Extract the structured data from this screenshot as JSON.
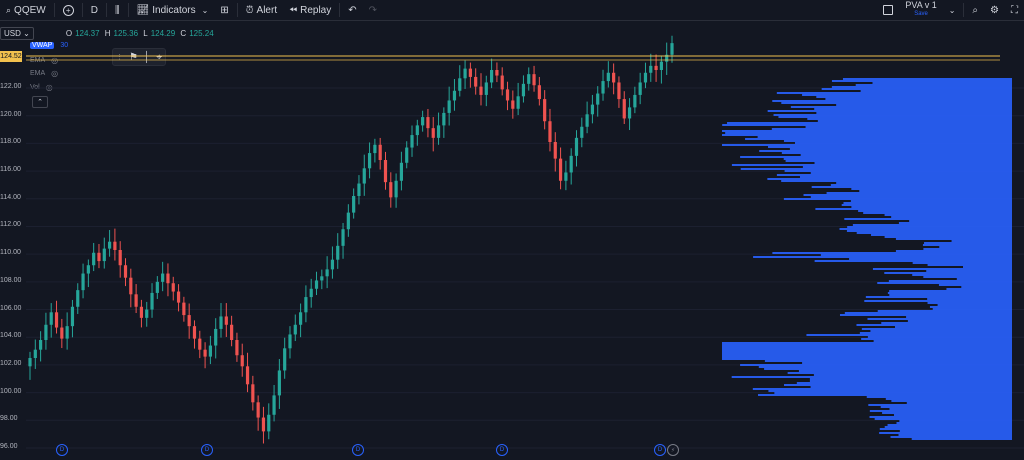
{
  "toolbar": {
    "symbol": "QQEW",
    "interval": "D",
    "indicators_label": "Indicators",
    "alert_label": "Alert",
    "replay_label": "Replay",
    "layout_name": "PVA v 1",
    "layout_status": "Save"
  },
  "legend": {
    "currency": "USD",
    "open_label": "O",
    "open": "124.37",
    "high_label": "H",
    "high": "125.36",
    "low_label": "L",
    "low": "124.29",
    "close_label": "C",
    "close": "125.24",
    "vwap_label": "VWAP",
    "vwap_value": "30",
    "ema1_label": "EMA",
    "ema2_label": "EMA",
    "vol_label": "Vol"
  },
  "price_axis": {
    "current_price": "124.52",
    "labels": [
      "122.00",
      "120.00",
      "118.00",
      "116.00",
      "114.00",
      "112.00",
      "110.00",
      "108.00",
      "106.00",
      "104.00",
      "102.00",
      "100.00",
      "98.00",
      "96.00"
    ]
  },
  "colors": {
    "up": "#26a69a",
    "down": "#ef5350",
    "profile": "#2962ff",
    "level": "#f2c14e",
    "bg": "#131722"
  },
  "markers": [
    "D",
    "D",
    "D",
    "D",
    "D"
  ],
  "chart_data": {
    "type": "candlestick",
    "ylim": [
      95.5,
      126.5
    ],
    "closes": [
      102.5,
      103.1,
      103.8,
      104.9,
      105.8,
      104.7,
      103.9,
      104.8,
      106.2,
      107.4,
      108.6,
      109.2,
      110.1,
      109.5,
      110.4,
      110.9,
      110.3,
      109.2,
      108.3,
      107.1,
      106.2,
      105.4,
      106.0,
      107.2,
      108.0,
      108.6,
      107.9,
      107.3,
      106.5,
      105.6,
      104.8,
      103.9,
      103.1,
      102.6,
      103.4,
      104.6,
      105.5,
      104.9,
      103.8,
      102.7,
      101.9,
      100.6,
      99.3,
      98.2,
      97.2,
      98.4,
      99.8,
      101.6,
      103.2,
      104.2,
      104.9,
      105.8,
      106.9,
      107.5,
      108.1,
      108.4,
      108.9,
      109.6,
      110.6,
      111.8,
      113.0,
      114.2,
      115.1,
      116.2,
      117.3,
      117.9,
      116.8,
      115.2,
      114.1,
      115.3,
      116.6,
      117.7,
      118.6,
      119.3,
      119.9,
      119.1,
      118.4,
      119.3,
      120.2,
      121.1,
      121.8,
      122.7,
      123.4,
      122.8,
      122.1,
      121.5,
      122.4,
      123.3,
      122.9,
      121.9,
      121.1,
      120.5,
      121.4,
      122.3,
      123.0,
      122.2,
      121.2,
      119.6,
      118.1,
      116.9,
      115.3,
      115.9,
      117.1,
      118.4,
      119.2,
      120.1,
      120.8,
      121.6,
      122.5,
      123.1,
      122.4,
      121.2,
      119.8,
      120.6,
      121.5,
      122.4,
      123.1,
      123.6,
      123.3,
      123.9,
      124.4,
      125.24
    ],
    "volume_profile_note": "horizontal volume-by-price histogram on right"
  }
}
